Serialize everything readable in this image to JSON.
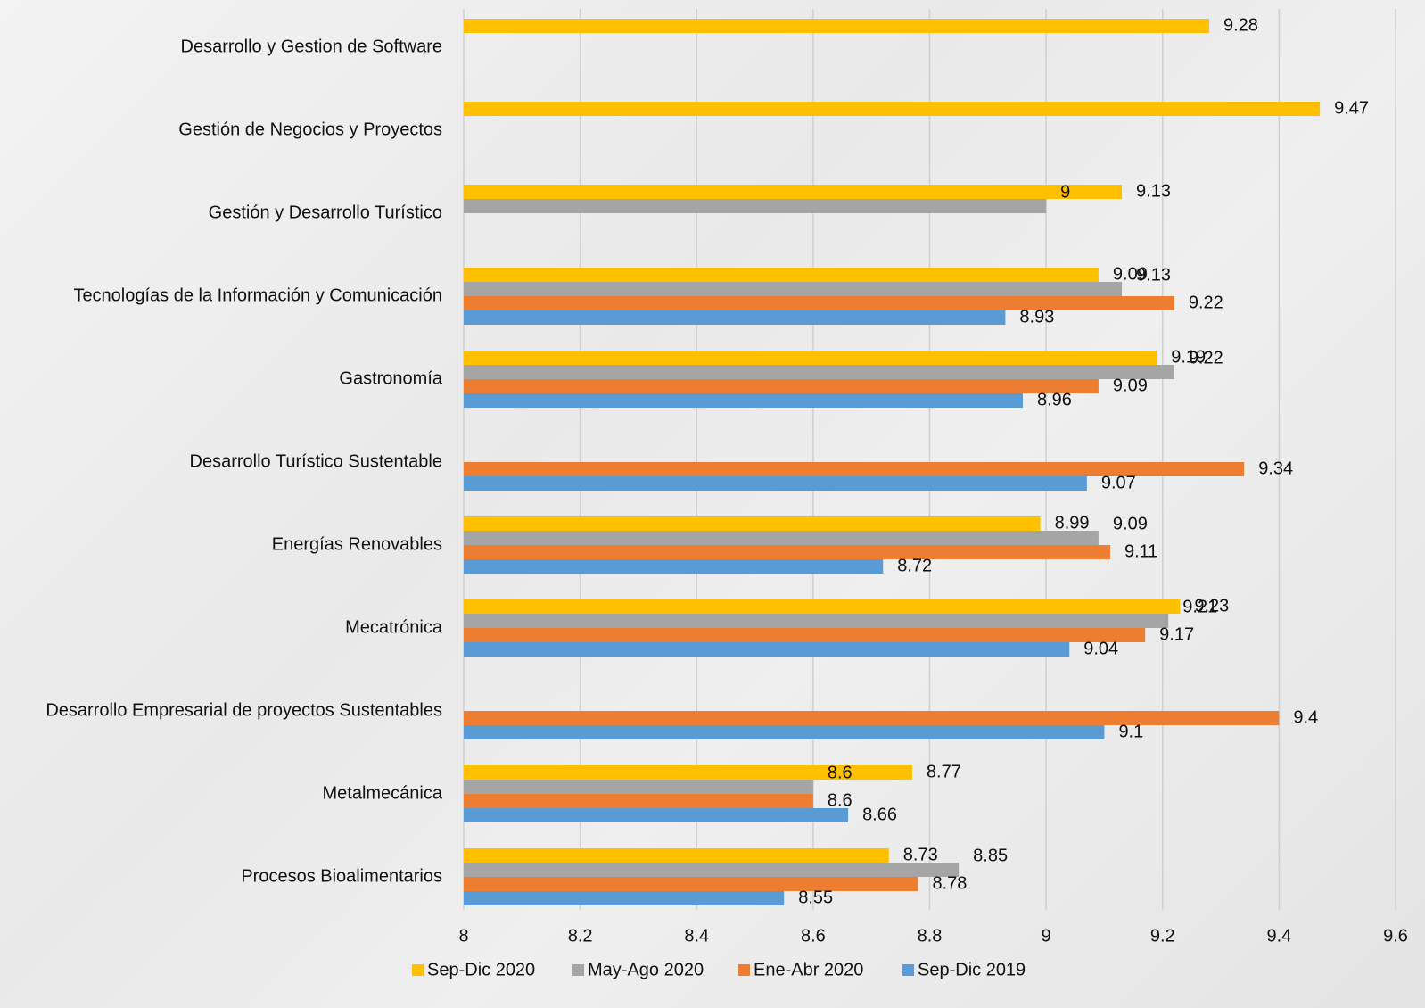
{
  "chart_data": {
    "type": "bar",
    "orientation": "horizontal",
    "title": "",
    "xlabel": "",
    "ylabel": "",
    "xlim": [
      8,
      9.6
    ],
    "ticks": [
      "8",
      "8.2",
      "8.4",
      "8.6",
      "8.8",
      "9",
      "9.2",
      "9.4",
      "9.6"
    ],
    "tick_values": [
      8,
      8.2,
      8.4,
      8.6,
      8.8,
      9,
      9.2,
      9.4,
      9.6
    ],
    "grid": true,
    "legend_position": "bottom",
    "categories": [
      "Desarrollo y Gestion de Software",
      "Gestión de Negocios y Proyectos",
      "Gestión y Desarrollo Turístico",
      "Tecnologías de la Información y Comunicación",
      "Gastronomía",
      "Desarrollo Turístico Sustentable",
      "Energías Renovables",
      "Mecatrónica",
      "Desarrollo Empresarial de proyectos Sustentables",
      "Metalmecánica",
      "Procesos Bioalimentarios"
    ],
    "series": [
      {
        "name": "Sep-Dic 2020",
        "color": "#ffc000",
        "values": [
          9.28,
          9.47,
          9.13,
          9.09,
          9.19,
          null,
          8.99,
          9.23,
          null,
          8.77,
          8.73
        ],
        "labels": [
          "9.28",
          "9.47",
          "9.13",
          "9.09",
          "9.19",
          null,
          "8.99",
          "9.23",
          null,
          "8.77",
          "8.73"
        ]
      },
      {
        "name": "May-Ago 2020",
        "color": "#a5a5a5",
        "values": [
          null,
          null,
          9,
          9.13,
          9.22,
          null,
          9.09,
          9.21,
          null,
          8.6,
          8.85
        ],
        "labels": [
          null,
          null,
          "9",
          "9.13",
          "9.22",
          null,
          "9.09",
          "9.21",
          null,
          "8.6",
          "8.85"
        ]
      },
      {
        "name": "Ene-Abr 2020",
        "color": "#ed7d31",
        "values": [
          null,
          null,
          null,
          9.22,
          9.09,
          9.34,
          9.11,
          9.17,
          9.4,
          8.6,
          8.78
        ],
        "labels": [
          null,
          null,
          null,
          "9.22",
          "9.09",
          "9.34",
          "9.11",
          "9.17",
          "9.4",
          "8.6",
          "8.78"
        ]
      },
      {
        "name": "Sep-Dic 2019",
        "color": "#5b9bd5",
        "values": [
          null,
          null,
          null,
          8.93,
          8.96,
          9.07,
          8.72,
          9.04,
          9.1,
          8.66,
          8.55
        ],
        "labels": [
          null,
          null,
          null,
          "8.93",
          "8.96",
          "9.07",
          "8.72",
          "9.04",
          "9.1",
          "8.66",
          "8.55"
        ]
      }
    ]
  }
}
